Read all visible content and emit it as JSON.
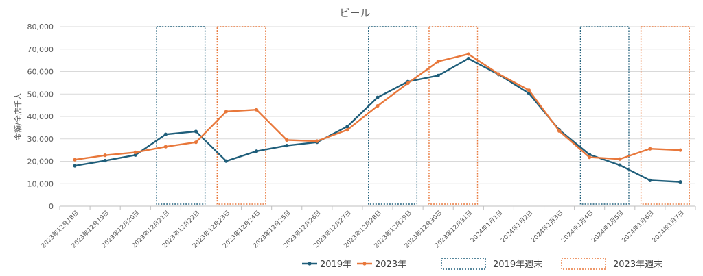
{
  "chart_data": {
    "type": "line",
    "title": "ビール",
    "ylabel": "金額/全店千人",
    "xlabel": "",
    "ylim": [
      0,
      80000
    ],
    "yticks": [
      0,
      10000,
      20000,
      30000,
      40000,
      50000,
      60000,
      70000,
      80000
    ],
    "ytick_labels": [
      "0",
      "10,000",
      "20,000",
      "30,000",
      "40,000",
      "50,000",
      "60,000",
      "70,000",
      "80,000"
    ],
    "grid": true,
    "legend_position": "bottom",
    "categories": [
      "2023年12月18日",
      "2023年12月19日",
      "2023年12月20日",
      "2023年12月21日",
      "2023年12月22日",
      "2023年12月23日",
      "2023年12月24日",
      "2023年12月25日",
      "2023年12月26日",
      "2023年12月27日",
      "2023年12月28日",
      "2023年12月29日",
      "2023年12月30日",
      "2023年12月31日",
      "2024年1月1日",
      "2024年1月2日",
      "2024年1月3日",
      "2024年1月4日",
      "2024年1月5日",
      "2024年1月6日",
      "2024年1月7日"
    ],
    "series": [
      {
        "name": "2019年",
        "color": "#1f5e7a",
        "values": [
          18000,
          20300,
          22800,
          32000,
          33300,
          20100,
          24500,
          27000,
          28500,
          35500,
          48500,
          55500,
          58200,
          65800,
          58700,
          50300,
          34000,
          23000,
          18300,
          11500,
          10800
        ]
      },
      {
        "name": "2023年",
        "color": "#e8773a",
        "values": [
          20700,
          22700,
          24000,
          26500,
          28500,
          42200,
          43000,
          29500,
          29000,
          34000,
          44700,
          54800,
          64500,
          67800,
          58900,
          51700,
          33500,
          21800,
          21000,
          25600,
          25000
        ]
      }
    ],
    "highlight_boxes": [
      {
        "group": "2019年週末",
        "start": 3,
        "end": 4,
        "color": "#1f5e7a"
      },
      {
        "group": "2023年週末",
        "start": 5,
        "end": 6,
        "color": "#e8773a"
      },
      {
        "group": "2019年週末",
        "start": 10,
        "end": 11,
        "color": "#1f5e7a"
      },
      {
        "group": "2023年週末",
        "start": 12,
        "end": 13,
        "color": "#e8773a"
      },
      {
        "group": "2019年週末",
        "start": 17,
        "end": 18,
        "color": "#1f5e7a"
      },
      {
        "group": "2023年週末",
        "start": 19,
        "end": 20,
        "color": "#e8773a"
      }
    ],
    "legend": [
      {
        "kind": "line",
        "label": "2019年",
        "color": "#1f5e7a"
      },
      {
        "kind": "line",
        "label": "2023年",
        "color": "#e8773a"
      },
      {
        "kind": "box",
        "label": "2019年週末",
        "color": "#1f5e7a"
      },
      {
        "kind": "box",
        "label": "2023年週末",
        "color": "#e8773a"
      }
    ]
  }
}
